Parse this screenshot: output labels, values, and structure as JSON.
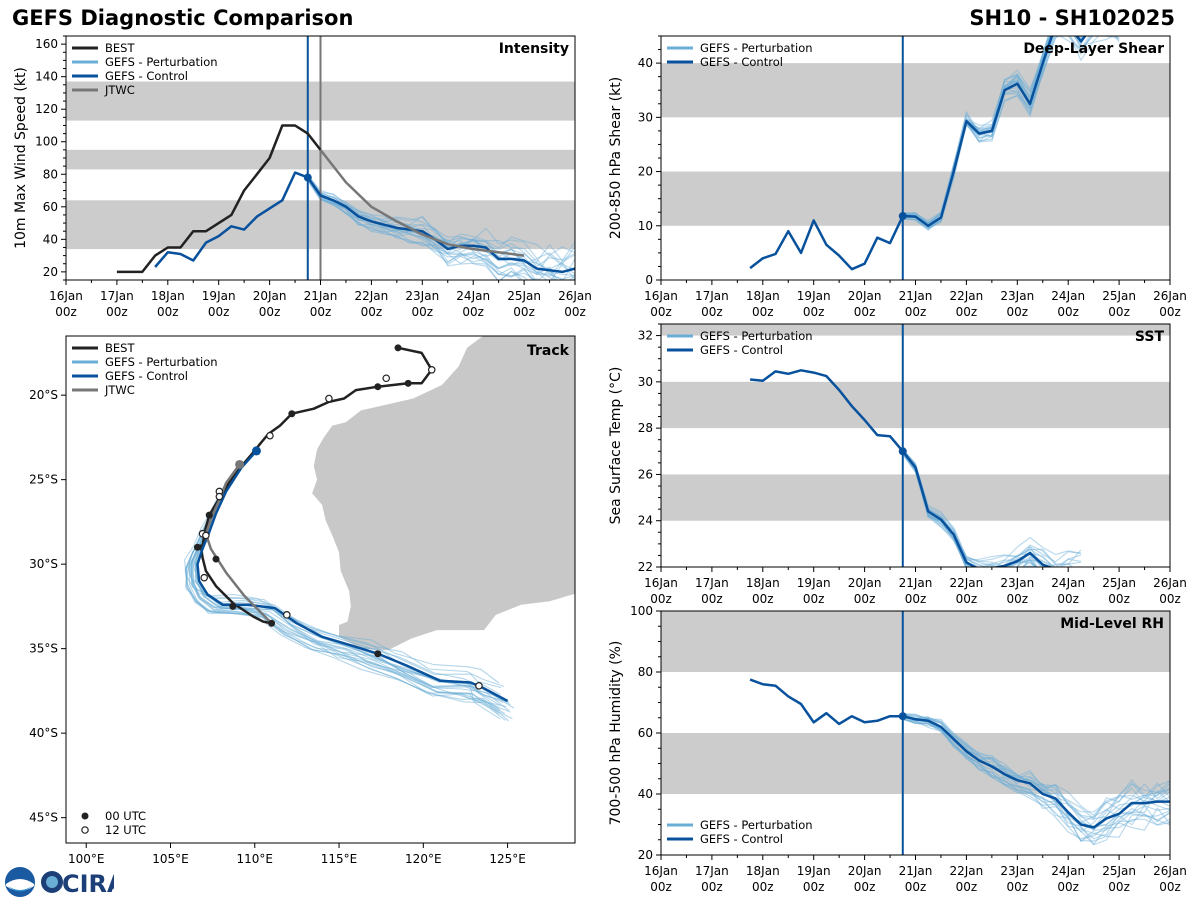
{
  "header": {
    "title": "GEFS Diagnostic Comparison",
    "storm_id": "SH10 - SH102025"
  },
  "logos": {
    "noaa_text": "NOAA",
    "cira_text": "CIRA"
  },
  "colors": {
    "best": "#222222",
    "perturbation": "#6aaed6",
    "control": "#08519c",
    "jtwc": "#777777",
    "band": "#cccccc",
    "land": "#c8c8c8"
  },
  "time_ticks": [
    {
      "date": "16Jan",
      "hour": "00z"
    },
    {
      "date": "17Jan",
      "hour": "00z"
    },
    {
      "date": "18Jan",
      "hour": "00z"
    },
    {
      "date": "19Jan",
      "hour": "00z"
    },
    {
      "date": "20Jan",
      "hour": "00z"
    },
    {
      "date": "21Jan",
      "hour": "00z"
    },
    {
      "date": "22Jan",
      "hour": "00z"
    },
    {
      "date": "23Jan",
      "hour": "00z"
    },
    {
      "date": "24Jan",
      "hour": "00z"
    },
    {
      "date": "25Jan",
      "hour": "00z"
    },
    {
      "date": "26Jan",
      "hour": "00z"
    }
  ],
  "chart_data": [
    {
      "id": "intensity",
      "type": "line",
      "title": "Intensity",
      "ylabel": "10m Max Wind Speed (kt)",
      "xlim": [
        "16Jan 00z",
        "26Jan 00z"
      ],
      "ylim": [
        15,
        165
      ],
      "yticks": [
        20,
        40,
        60,
        80,
        100,
        120,
        140,
        160
      ],
      "bands": [
        [
          34,
          64
        ],
        [
          83,
          95
        ],
        [
          113,
          137
        ]
      ],
      "legend": [
        "BEST",
        "GEFS - Perturbation",
        "GEFS - Control",
        "JTWC"
      ],
      "legend_position": "top-left",
      "init_day": 4.75,
      "jtwc_line_day": 5.0,
      "series": [
        {
          "name": "BEST",
          "x": [
            1,
            1.5,
            1.75,
            2,
            2.25,
            2.5,
            2.75,
            3,
            3.25,
            3.5,
            3.75,
            4,
            4.25,
            4.5,
            4.75,
            5
          ],
          "y": [
            20,
            20,
            30,
            35,
            35,
            45,
            45,
            50,
            55,
            70,
            80,
            90,
            110,
            110,
            105,
            95
          ]
        },
        {
          "name": "GEFS - Control",
          "x": [
            1.75,
            2,
            2.25,
            2.5,
            2.75,
            3,
            3.25,
            3.5,
            3.75,
            4,
            4.25,
            4.5,
            4.75,
            5,
            5.25,
            5.5,
            5.75,
            6,
            6.25,
            6.5,
            6.75,
            7,
            7.25,
            7.5,
            7.75,
            8,
            8.25,
            8.5,
            8.75,
            9,
            9.25,
            9.5,
            9.75,
            10
          ],
          "y": [
            23,
            32,
            31,
            27,
            38,
            42,
            48,
            46,
            54,
            59,
            64,
            81,
            78,
            67,
            64,
            60,
            54,
            51,
            49,
            47,
            46,
            45,
            40,
            34,
            36,
            36,
            35,
            28,
            28,
            27,
            22,
            21,
            20,
            22
          ]
        },
        {
          "name": "JTWC",
          "x": [
            5,
            5.5,
            6,
            6.5,
            7,
            7.5,
            8,
            8.5,
            9
          ],
          "y": [
            95,
            75,
            60,
            51,
            43,
            37,
            34,
            32,
            30
          ]
        }
      ],
      "perturbation_count": 20,
      "perturbation_start": 4.75
    },
    {
      "id": "shear",
      "type": "line",
      "title": "Deep-Layer Shear",
      "ylabel": "200-850 hPa Shear (kt)",
      "xlim": [
        "16Jan 00z",
        "26Jan 00z"
      ],
      "ylim": [
        0,
        45
      ],
      "yticks": [
        0,
        10,
        20,
        30,
        40
      ],
      "bands": [
        [
          10,
          20
        ],
        [
          30,
          40
        ]
      ],
      "legend": [
        "GEFS - Perturbation",
        "GEFS - Control"
      ],
      "legend_position": "top-left",
      "init_day": 4.75,
      "series": [
        {
          "name": "GEFS - Control",
          "x": [
            1.75,
            2,
            2.25,
            2.5,
            2.75,
            3,
            3.25,
            3.5,
            3.75,
            4,
            4.25,
            4.5,
            4.75,
            5,
            5.25,
            5.5,
            5.75,
            6,
            6.25,
            6.5,
            6.75,
            7,
            7.25,
            7.5,
            7.75,
            8,
            8.25,
            8.5,
            8.75,
            9
          ],
          "y": [
            2.2,
            4,
            4.8,
            9,
            5,
            11,
            6.5,
            4.5,
            2,
            3,
            7.8,
            6.8,
            11.8,
            11.7,
            10,
            11.5,
            20,
            29.3,
            27,
            27.5,
            35,
            36.2,
            32.5,
            40,
            47,
            47,
            44,
            47,
            47,
            47
          ]
        }
      ],
      "perturbation_count": 20,
      "perturbation_start": 4.75
    },
    {
      "id": "sst",
      "type": "line",
      "title": "SST",
      "ylabel": "Sea Surface Temp (°C)",
      "xlim": [
        "16Jan 00z",
        "26Jan 00z"
      ],
      "ylim": [
        22,
        32.5
      ],
      "yticks": [
        22,
        24,
        26,
        28,
        30,
        32
      ],
      "bands": [
        [
          24,
          26
        ],
        [
          28,
          30
        ],
        [
          32,
          33
        ]
      ],
      "legend": [
        "GEFS - Perturbation",
        "GEFS - Control"
      ],
      "legend_position": "top-left",
      "init_day": 4.75,
      "series": [
        {
          "name": "GEFS - Control",
          "x": [
            1.75,
            2,
            2.25,
            2.5,
            2.75,
            3,
            3.25,
            3.5,
            3.75,
            4,
            4.25,
            4.5,
            4.75,
            5,
            5.25,
            5.5,
            5.75,
            6,
            6.25,
            6.5,
            6.75,
            7,
            7.25,
            7.5,
            7.75,
            8,
            8.25
          ],
          "y": [
            30.1,
            30.05,
            30.45,
            30.35,
            30.5,
            30.4,
            30.25,
            29.65,
            28.95,
            28.35,
            27.7,
            27.65,
            27,
            26.3,
            24.4,
            24.05,
            23.4,
            22.2,
            21.9,
            21.95,
            22.05,
            22.25,
            22.6,
            22.1,
            21.9,
            21.9,
            21.9
          ]
        }
      ],
      "perturbation_count": 20,
      "perturbation_start": 4.75
    },
    {
      "id": "rh",
      "type": "line",
      "title": "Mid-Level RH",
      "ylabel": "700-500 hPa Humidity (%)",
      "xlim": [
        "16Jan 00z",
        "26Jan 00z"
      ],
      "ylim": [
        20,
        100
      ],
      "yticks": [
        20,
        40,
        60,
        80,
        100
      ],
      "bands": [
        [
          40,
          60
        ],
        [
          80,
          100
        ]
      ],
      "legend": [
        "GEFS - Perturbation",
        "GEFS - Control"
      ],
      "legend_position": "bottom-left",
      "init_day": 4.75,
      "series": [
        {
          "name": "GEFS - Control",
          "x": [
            1.75,
            2,
            2.25,
            2.5,
            2.75,
            3,
            3.25,
            3.5,
            3.75,
            4,
            4.25,
            4.5,
            4.75,
            5,
            5.25,
            5.5,
            5.75,
            6,
            6.25,
            6.5,
            6.75,
            7,
            7.25,
            7.5,
            7.75,
            8,
            8.25,
            8.5,
            8.75,
            9,
            9.25,
            9.5,
            9.75,
            10
          ],
          "y": [
            77.5,
            76,
            75.5,
            72,
            69.5,
            63.5,
            66.5,
            63,
            65.5,
            63.5,
            64,
            65.5,
            65.5,
            64.5,
            64,
            62,
            58,
            54,
            51,
            49,
            46.5,
            44.5,
            43.5,
            40,
            38.5,
            34,
            30,
            29,
            32,
            33.5,
            37,
            37,
            37.5,
            37.5
          ]
        }
      ],
      "perturbation_count": 20,
      "perturbation_start": 4.75
    },
    {
      "id": "track",
      "type": "map",
      "title": "Track",
      "lon_ticks": [
        "100°E",
        "105°E",
        "110°E",
        "115°E",
        "120°E",
        "125°E"
      ],
      "lat_ticks": [
        "20°S",
        "25°S",
        "30°S",
        "35°S",
        "40°S",
        "45°S"
      ],
      "lon_range": [
        98.8,
        129
      ],
      "lat_range": [
        -16.5,
        -46.5
      ],
      "legend": [
        "BEST",
        "GEFS - Perturbation",
        "GEFS - Control",
        "JTWC"
      ],
      "marker_legend": [
        "00 UTC",
        "12 UTC"
      ],
      "series": [
        {
          "name": "BEST",
          "lon": [
            118.5,
            119.9,
            120.5,
            119.9,
            119.1,
            118.2,
            117.3,
            116,
            115.3,
            114.4,
            113.5,
            112.2,
            111.5,
            110.8,
            110.3,
            109.9,
            109.3,
            108.6,
            107.9,
            107.3,
            107,
            106.9,
            106.8,
            106.9,
            107.1,
            107.7,
            108.7,
            109.9,
            110.5,
            111
          ],
          "lat": [
            -17.2,
            -17.5,
            -18.5,
            -19.3,
            -19.3,
            -19.4,
            -19.5,
            -19.7,
            -20.2,
            -20.4,
            -20.8,
            -21.1,
            -21.8,
            -22.3,
            -22.9,
            -23.4,
            -24.1,
            -25,
            -26.1,
            -27.1,
            -28.2,
            -29.1,
            -28.9,
            -29.6,
            -30.4,
            -31.3,
            -32.3,
            -33.1,
            -33.4,
            -33.5
          ]
        },
        {
          "name": "GEFS - Control",
          "lon": [
            110.1,
            109.2,
            108.3,
            107.7,
            107.3,
            106.9,
            106.6,
            106.7,
            107.2,
            108.1,
            109.6,
            111.2,
            112.5,
            114,
            115.7,
            117.3,
            119,
            121,
            122.8,
            123.5,
            125
          ],
          "lat": [
            -23.3,
            -24.3,
            -25.7,
            -27,
            -28.1,
            -29.1,
            -30,
            -31,
            -31.8,
            -32.4,
            -32.4,
            -32.6,
            -33.5,
            -34.3,
            -34.8,
            -35.3,
            -36,
            -36.9,
            -37,
            -37.3,
            -38.1
          ]
        },
        {
          "name": "JTWC",
          "lon": [
            109.1,
            108.3,
            107.9,
            107.5,
            107.1,
            107.4,
            108.3,
            109.4,
            110.6,
            111
          ],
          "lat": [
            -24.1,
            -25.2,
            -26.2,
            -27.1,
            -28.2,
            -29.1,
            -30.5,
            -31.9,
            -33.1,
            -33.5
          ]
        }
      ],
      "markers_00utc": [
        [
          118.5,
          -17.2
        ],
        [
          119.1,
          -19.3
        ],
        [
          117.3,
          -19.5
        ],
        [
          112.2,
          -21.1
        ],
        [
          107.3,
          -27.1
        ],
        [
          106.6,
          -29
        ],
        [
          107.7,
          -29.7
        ],
        [
          108.7,
          -32.5
        ],
        [
          111,
          -33.5
        ],
        [
          117.3,
          -35.3
        ]
      ],
      "markers_12utc": [
        [
          120.5,
          -18.5
        ],
        [
          117.8,
          -19
        ],
        [
          114.4,
          -20.2
        ],
        [
          110.9,
          -22.4
        ],
        [
          107.9,
          -25.7
        ],
        [
          107.9,
          -26
        ],
        [
          106.9,
          -28.2
        ],
        [
          107.1,
          -28.3
        ],
        [
          107,
          -30.8
        ],
        [
          111.9,
          -33
        ],
        [
          123.3,
          -37.2
        ]
      ]
    }
  ]
}
